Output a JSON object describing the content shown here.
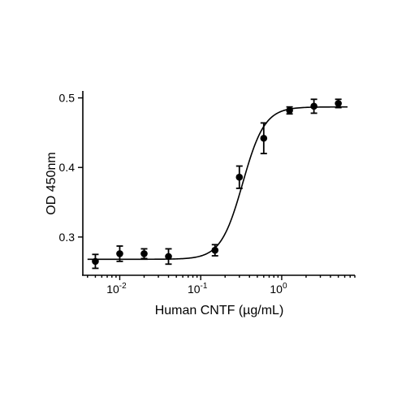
{
  "chart_data": {
    "type": "scatter",
    "xlabel": "Human CNTF (µg/mL)",
    "ylabel": "OD 450nm",
    "x_scale": "log",
    "xlim": [
      0.0035,
      8.0
    ],
    "ylim": [
      0.245,
      0.51
    ],
    "x_ticks": [
      {
        "value": 0.01,
        "base": "10",
        "exp": "-2"
      },
      {
        "value": 0.1,
        "base": "10",
        "exp": "-1"
      },
      {
        "value": 1,
        "base": "10",
        "exp": "0"
      }
    ],
    "y_ticks": [
      {
        "value": 0.3,
        "label": "0.3"
      },
      {
        "value": 0.4,
        "label": "0.4"
      },
      {
        "value": 0.5,
        "label": "0.5"
      }
    ],
    "points": [
      {
        "x": 0.005,
        "y": 0.265,
        "err": 0.01
      },
      {
        "x": 0.01,
        "y": 0.276,
        "err": 0.011
      },
      {
        "x": 0.02,
        "y": 0.276,
        "err": 0.007
      },
      {
        "x": 0.04,
        "y": 0.272,
        "err": 0.011
      },
      {
        "x": 0.15,
        "y": 0.281,
        "err": 0.008
      },
      {
        "x": 0.3,
        "y": 0.386,
        "err": 0.016
      },
      {
        "x": 0.6,
        "y": 0.442,
        "err": 0.022
      },
      {
        "x": 1.25,
        "y": 0.482,
        "err": 0.005
      },
      {
        "x": 2.5,
        "y": 0.488,
        "err": 0.01
      },
      {
        "x": 5.0,
        "y": 0.492,
        "err": 0.006
      }
    ],
    "fit": {
      "bottom": 0.268,
      "top": 0.487,
      "ec50": 0.33,
      "hill": 3.2
    },
    "grid": false,
    "legend": "none"
  }
}
